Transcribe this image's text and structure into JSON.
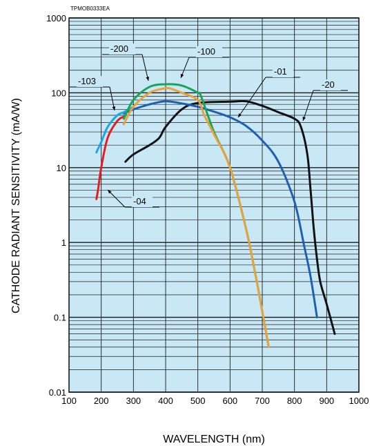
{
  "chart_data": {
    "type": "line",
    "figure_code": "TPMOB0333EA",
    "xlabel": "WAVELENGTH (nm)",
    "ylabel": "CATHODE RADIANT SENSITIVITY (mA/W)",
    "xlim": [
      100,
      1000
    ],
    "ylim": [
      0.01,
      1000
    ],
    "y_scale": "log",
    "grid": true,
    "x_ticks": [
      "100",
      "200",
      "300",
      "400",
      "500",
      "600",
      "700",
      "800",
      "900",
      "1000"
    ],
    "y_ticks": [
      "0.01",
      "0.1",
      "1",
      "10",
      "100",
      "1000"
    ],
    "colors": {
      "plot_background": "#c9e8f6",
      "grid": "#1a1a1a",
      "-01": "#1f5fb0",
      "-20": "#111111",
      "-100": "#e8a23a",
      "-200": "#1aa35a",
      "-103": "#1ca6e6",
      "-04": "#e02020",
      "leader": "#000000"
    },
    "series": [
      {
        "name": "-01",
        "x": [
          270,
          300,
          350,
          400,
          450,
          500,
          550,
          600,
          650,
          700,
          750,
          800,
          830,
          850,
          870
        ],
        "y": [
          53,
          60,
          70,
          77,
          72,
          65,
          56,
          47,
          36,
          23,
          12,
          3.5,
          0.9,
          0.35,
          0.1
        ]
      },
      {
        "name": "-20",
        "x": [
          275,
          300,
          350,
          380,
          400,
          450,
          500,
          600,
          650,
          700,
          750,
          800,
          820,
          840,
          850,
          860,
          870,
          880,
          900,
          925
        ],
        "y": [
          12,
          15,
          20,
          25,
          35,
          60,
          73,
          76,
          77,
          67,
          55,
          45,
          35,
          15,
          5,
          1.5,
          0.6,
          0.3,
          0.15,
          0.06
        ]
      },
      {
        "name": "-100",
        "x": [
          270,
          300,
          350,
          400,
          420,
          450,
          500,
          520,
          550,
          600,
          650,
          680,
          700,
          720
        ],
        "y": [
          38,
          65,
          100,
          115,
          112,
          100,
          80,
          50,
          28,
          10,
          1.5,
          0.35,
          0.12,
          0.04
        ]
      },
      {
        "name": "-200",
        "x": [
          270,
          300,
          350,
          400,
          450,
          500,
          510,
          550,
          600,
          650,
          680,
          700,
          720
        ],
        "y": [
          45,
          80,
          120,
          130,
          125,
          100,
          90,
          30,
          10,
          1.5,
          0.35,
          0.12,
          0.04
        ]
      },
      {
        "name": "-103",
        "x": [
          185,
          200,
          220,
          250,
          270,
          300
        ],
        "y": [
          16,
          22,
          35,
          50,
          55,
          65
        ]
      },
      {
        "name": "-04",
        "x": [
          185,
          190,
          200,
          220,
          250,
          270
        ],
        "y": [
          3.8,
          5,
          10,
          25,
          42,
          48
        ]
      }
    ],
    "labels": [
      {
        "text": "-200",
        "for": "-200"
      },
      {
        "text": "-100",
        "for": "-100"
      },
      {
        "text": "-103",
        "for": "-103"
      },
      {
        "text": "-01",
        "for": "-01"
      },
      {
        "text": "-20",
        "for": "-20"
      },
      {
        "text": "-04",
        "for": "-04"
      }
    ]
  }
}
